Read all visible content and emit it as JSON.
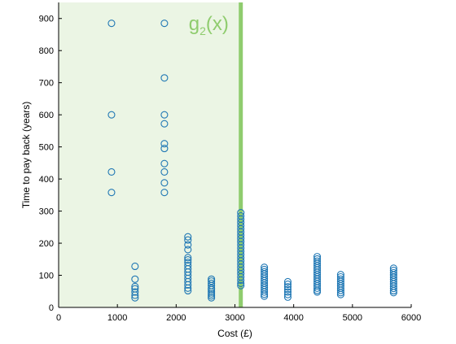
{
  "chart_data": {
    "type": "scatter",
    "title": "",
    "xlabel": "Cost (£)",
    "ylabel": "Time to pay back (years)",
    "xlim": [
      0,
      6000
    ],
    "ylim": [
      0,
      950
    ],
    "xticks": [
      0,
      1000,
      2000,
      3000,
      4000,
      5000,
      6000
    ],
    "yticks": [
      0,
      100,
      200,
      300,
      400,
      500,
      600,
      700,
      800,
      900
    ],
    "grid": false,
    "legend": "none",
    "colors": {
      "points": "#1f77b4",
      "region": "#ebf5e4",
      "boundary": "#8fcc6e"
    },
    "region": {
      "x_from": 0,
      "x_to": 3100
    },
    "boundary": {
      "x": 3100,
      "label_main": "g",
      "label_sub": "2",
      "label_tail": "(x)"
    },
    "series": [
      {
        "points": [
          [
            900,
            885
          ],
          [
            900,
            600
          ],
          [
            900,
            422
          ],
          [
            900,
            358
          ],
          [
            1300,
            128
          ],
          [
            1300,
            88
          ],
          [
            1300,
            65
          ],
          [
            1300,
            58
          ],
          [
            1300,
            48
          ],
          [
            1300,
            38
          ],
          [
            1300,
            30
          ],
          [
            1800,
            885
          ],
          [
            1800,
            715
          ],
          [
            1800,
            600
          ],
          [
            1800,
            572
          ],
          [
            1800,
            510
          ],
          [
            1800,
            495
          ],
          [
            1800,
            448
          ],
          [
            1800,
            422
          ],
          [
            1800,
            388
          ],
          [
            1800,
            358
          ],
          [
            2200,
            220
          ],
          [
            2200,
            210
          ],
          [
            2200,
            195
          ],
          [
            2200,
            180
          ],
          [
            2200,
            155
          ],
          [
            2200,
            148
          ],
          [
            2200,
            140
          ],
          [
            2200,
            130
          ],
          [
            2200,
            120
          ],
          [
            2200,
            110
          ],
          [
            2200,
            100
          ],
          [
            2200,
            90
          ],
          [
            2200,
            80
          ],
          [
            2200,
            70
          ],
          [
            2200,
            60
          ],
          [
            2200,
            52
          ],
          [
            2600,
            88
          ],
          [
            2600,
            82
          ],
          [
            2600,
            75
          ],
          [
            2600,
            68
          ],
          [
            2600,
            60
          ],
          [
            2600,
            55
          ],
          [
            2600,
            48
          ],
          [
            2600,
            42
          ],
          [
            2600,
            36
          ],
          [
            2600,
            30
          ],
          [
            3100,
            295
          ],
          [
            3100,
            285
          ],
          [
            3100,
            275
          ],
          [
            3100,
            265
          ],
          [
            3100,
            255
          ],
          [
            3100,
            245
          ],
          [
            3100,
            235
          ],
          [
            3100,
            225
          ],
          [
            3100,
            215
          ],
          [
            3100,
            205
          ],
          [
            3100,
            195
          ],
          [
            3100,
            185
          ],
          [
            3100,
            175
          ],
          [
            3100,
            165
          ],
          [
            3100,
            155
          ],
          [
            3100,
            145
          ],
          [
            3100,
            135
          ],
          [
            3100,
            125
          ],
          [
            3100,
            115
          ],
          [
            3100,
            105
          ],
          [
            3100,
            95
          ],
          [
            3100,
            85
          ],
          [
            3100,
            75
          ],
          [
            3100,
            68
          ],
          [
            3500,
            125
          ],
          [
            3500,
            118
          ],
          [
            3500,
            111
          ],
          [
            3500,
            104
          ],
          [
            3500,
            97
          ],
          [
            3500,
            90
          ],
          [
            3500,
            83
          ],
          [
            3500,
            76
          ],
          [
            3500,
            69
          ],
          [
            3500,
            62
          ],
          [
            3500,
            55
          ],
          [
            3500,
            48
          ],
          [
            3500,
            41
          ],
          [
            3500,
            35
          ],
          [
            3900,
            80
          ],
          [
            3900,
            72
          ],
          [
            3900,
            64
          ],
          [
            3900,
            56
          ],
          [
            3900,
            48
          ],
          [
            3900,
            40
          ],
          [
            3900,
            32
          ],
          [
            4400,
            158
          ],
          [
            4400,
            151
          ],
          [
            4400,
            144
          ],
          [
            4400,
            137
          ],
          [
            4400,
            130
          ],
          [
            4400,
            123
          ],
          [
            4400,
            116
          ],
          [
            4400,
            109
          ],
          [
            4400,
            102
          ],
          [
            4400,
            95
          ],
          [
            4400,
            88
          ],
          [
            4400,
            81
          ],
          [
            4400,
            74
          ],
          [
            4400,
            67
          ],
          [
            4400,
            60
          ],
          [
            4400,
            53
          ],
          [
            4400,
            48
          ],
          [
            4800,
            102
          ],
          [
            4800,
            95
          ],
          [
            4800,
            88
          ],
          [
            4800,
            81
          ],
          [
            4800,
            74
          ],
          [
            4800,
            67
          ],
          [
            4800,
            60
          ],
          [
            4800,
            53
          ],
          [
            4800,
            46
          ],
          [
            4800,
            40
          ],
          [
            5700,
            122
          ],
          [
            5700,
            115
          ],
          [
            5700,
            108
          ],
          [
            5700,
            101
          ],
          [
            5700,
            94
          ],
          [
            5700,
            87
          ],
          [
            5700,
            80
          ],
          [
            5700,
            73
          ],
          [
            5700,
            66
          ],
          [
            5700,
            59
          ],
          [
            5700,
            52
          ],
          [
            5700,
            46
          ]
        ]
      }
    ]
  }
}
